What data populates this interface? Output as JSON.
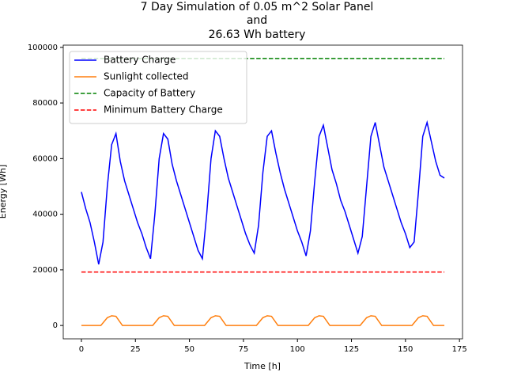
{
  "chart_data": {
    "type": "line",
    "title": [
      "7 Day Simulation of 0.05 m^2 Solar Panel",
      "and",
      "26.63 Wh battery"
    ],
    "xlabel": "Time [h]",
    "ylabel": "Energy [Wh]",
    "xlim": [
      -8.4,
      176.4
    ],
    "xticks": [
      0,
      25,
      50,
      75,
      100,
      125,
      150,
      175
    ],
    "ylim": [
      -4800,
      100800
    ],
    "yticks": [
      0,
      20000,
      40000,
      60000,
      80000,
      100000
    ],
    "legend": "upper left",
    "series": [
      {
        "name": "Battery Charge",
        "color": "#0000ff",
        "linestyle": "solid",
        "x": [
          0,
          2,
          4,
          6,
          8,
          10,
          12,
          14,
          16,
          18,
          20,
          22,
          24,
          26,
          28,
          30,
          32,
          34,
          36,
          38,
          40,
          42,
          44,
          46,
          48,
          50,
          52,
          54,
          56,
          58,
          60,
          62,
          64,
          66,
          68,
          70,
          72,
          74,
          76,
          78,
          80,
          82,
          84,
          86,
          88,
          90,
          92,
          94,
          96,
          98,
          100,
          102,
          104,
          106,
          108,
          110,
          112,
          114,
          116,
          118,
          120,
          122,
          124,
          126,
          128,
          130,
          132,
          134,
          136,
          138,
          140,
          142,
          144,
          146,
          148,
          150,
          152,
          154,
          156,
          158,
          160,
          162,
          164,
          166,
          168
        ],
        "values": [
          48000,
          42000,
          37000,
          30000,
          22000,
          30000,
          50000,
          65000,
          69000,
          59000,
          52000,
          47000,
          42000,
          37000,
          33000,
          28000,
          24000,
          40000,
          60000,
          69000,
          67000,
          58000,
          52000,
          47000,
          42000,
          37000,
          32000,
          27000,
          24000,
          40000,
          60000,
          70000,
          68000,
          60000,
          53000,
          48000,
          43000,
          38000,
          33000,
          29000,
          26000,
          36000,
          55000,
          68000,
          70000,
          62000,
          55000,
          49000,
          44000,
          39000,
          34000,
          30000,
          25000,
          34000,
          52000,
          68000,
          72000,
          64000,
          56000,
          51000,
          45000,
          41000,
          36000,
          31000,
          26000,
          32000,
          50000,
          68000,
          73000,
          65000,
          57000,
          52000,
          47000,
          42000,
          37000,
          33000,
          28000,
          30000,
          48000,
          68000,
          73000,
          66000,
          59000,
          54000,
          53000
        ]
      },
      {
        "name": "Sunlight collected",
        "color": "#ff7f0e",
        "linestyle": "solid",
        "x": [
          0,
          9,
          12,
          14,
          16,
          19,
          33,
          36,
          38,
          40,
          43,
          57,
          60,
          62,
          64,
          67,
          81,
          84,
          86,
          88,
          91,
          105,
          108,
          110,
          112,
          115,
          129,
          132,
          134,
          136,
          139,
          153,
          156,
          158,
          160,
          163,
          168
        ],
        "values": [
          0,
          0,
          2800,
          3500,
          3300,
          0,
          0,
          2800,
          3500,
          3300,
          0,
          0,
          2800,
          3500,
          3300,
          0,
          0,
          2800,
          3500,
          3300,
          0,
          0,
          2800,
          3500,
          3300,
          0,
          0,
          2800,
          3500,
          3300,
          0,
          0,
          2800,
          3500,
          3300,
          0,
          0
        ]
      },
      {
        "name": "Capacity of Battery",
        "color": "#008000",
        "linestyle": "dashed",
        "x": [
          0,
          168
        ],
        "values": [
          96000,
          96000
        ]
      },
      {
        "name": "Minimum Battery Charge",
        "color": "#ff0000",
        "linestyle": "dashed",
        "x": [
          0,
          168
        ],
        "values": [
          19200,
          19200
        ]
      }
    ]
  }
}
